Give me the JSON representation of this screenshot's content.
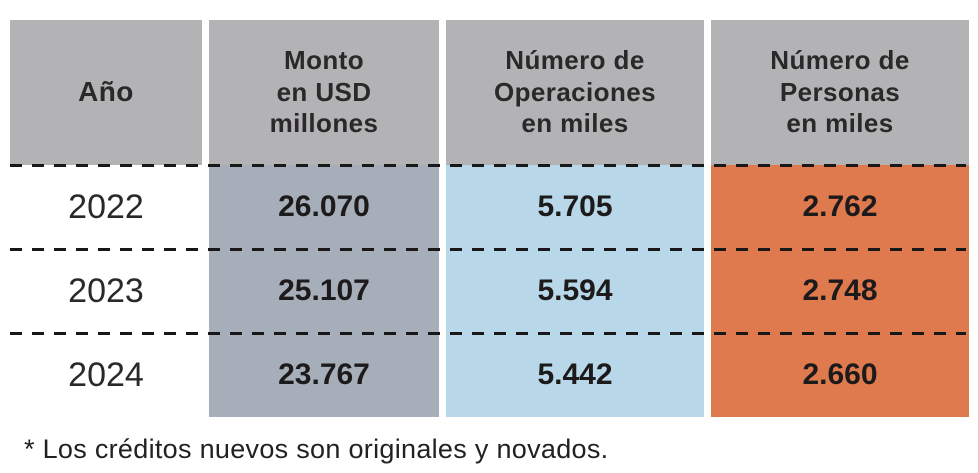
{
  "chart_data": {
    "type": "table",
    "columns": [
      "Año",
      "Monto en USD millones",
      "Número de Operaciones en miles",
      "Número de Personas en miles"
    ],
    "rows": [
      [
        "2022",
        "26.070",
        "5.705",
        "2.762"
      ],
      [
        "2023",
        "25.107",
        "5.594",
        "2.748"
      ],
      [
        "2024",
        "23.767",
        "5.442",
        "2.660"
      ]
    ],
    "footnote": "* Los créditos nuevos son originales y novados."
  },
  "table": {
    "header": {
      "ano": "Año",
      "monto": "Monto\nen USD\nmillones",
      "operaciones": "Número de\nOperaciones\nen miles",
      "personas": "Número de\nPersonas\nen miles"
    },
    "rows": [
      {
        "year": "2022",
        "monto": "26.070",
        "operaciones": "5.705",
        "personas": "2.762"
      },
      {
        "year": "2023",
        "monto": "25.107",
        "operaciones": "5.594",
        "personas": "2.748"
      },
      {
        "year": "2024",
        "monto": "23.767",
        "operaciones": "5.442",
        "personas": "2.660"
      }
    ]
  },
  "footnote": "* Los créditos nuevos son originales y novados.",
  "colors": {
    "header_bg": "#b3b3b5",
    "monto_bg": "#a5aeb9",
    "operaciones_bg": "#b8d8e9",
    "personas_bg": "#df7a4f",
    "text": "#232020"
  }
}
